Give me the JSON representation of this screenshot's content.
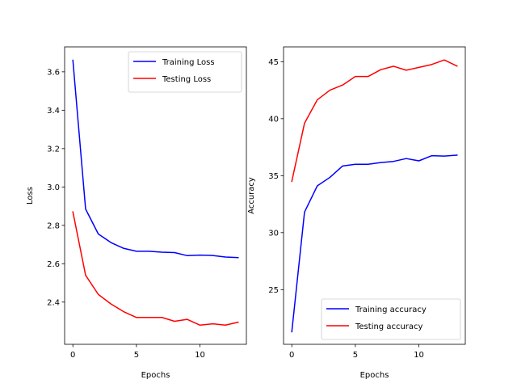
{
  "chart_data": [
    {
      "type": "line",
      "title": "",
      "xlabel": "Epochs",
      "ylabel": "Loss",
      "xlim": [
        -0.65,
        13.65
      ],
      "ylim": [
        2.18,
        3.73
      ],
      "xticks": [
        0,
        5,
        10
      ],
      "xtick_labels": [
        "0",
        "5",
        "10"
      ],
      "yticks": [
        2.4,
        2.6,
        2.8,
        3.0,
        3.2,
        3.4,
        3.6
      ],
      "ytick_labels": [
        "2.4",
        "2.6",
        "2.8",
        "3.0",
        "3.2",
        "3.4",
        "3.6"
      ],
      "grid": false,
      "legend_position": "top-right",
      "x": [
        0,
        1,
        2,
        3,
        4,
        5,
        6,
        7,
        8,
        9,
        10,
        11,
        12,
        13
      ],
      "series": [
        {
          "name": "Training Loss",
          "color": "#0000ff",
          "values": [
            3.66,
            2.885,
            2.755,
            2.71,
            2.68,
            2.665,
            2.665,
            2.66,
            2.658,
            2.642,
            2.645,
            2.643,
            2.635,
            2.632
          ]
        },
        {
          "name": "Testing Loss",
          "color": "#ff0000",
          "values": [
            2.87,
            2.54,
            2.44,
            2.39,
            2.35,
            2.32,
            2.32,
            2.32,
            2.3,
            2.31,
            2.28,
            2.287,
            2.28,
            2.295
          ]
        }
      ]
    },
    {
      "type": "line",
      "title": "",
      "xlabel": "Epochs",
      "ylabel": "Accuracy",
      "xlim": [
        -0.65,
        13.65
      ],
      "ylim": [
        20.2,
        46.3
      ],
      "xticks": [
        0,
        5,
        10
      ],
      "xtick_labels": [
        "0",
        "5",
        "10"
      ],
      "yticks": [
        25,
        30,
        35,
        40,
        45
      ],
      "ytick_labels": [
        "25",
        "30",
        "35",
        "40",
        "45"
      ],
      "grid": false,
      "legend_position": "bottom-right",
      "x": [
        0,
        1,
        2,
        3,
        4,
        5,
        6,
        7,
        8,
        9,
        10,
        11,
        12,
        13
      ],
      "series": [
        {
          "name": "Training accuracy",
          "color": "#0000ff",
          "values": [
            21.3,
            31.8,
            34.1,
            34.85,
            35.85,
            36.0,
            36.0,
            36.15,
            36.25,
            36.5,
            36.3,
            36.75,
            36.72,
            36.8
          ]
        },
        {
          "name": "Testing accuracy",
          "color": "#ff0000",
          "values": [
            34.5,
            39.6,
            41.65,
            42.5,
            42.95,
            43.7,
            43.7,
            44.3,
            44.6,
            44.25,
            44.5,
            44.75,
            45.15,
            44.62
          ]
        }
      ]
    }
  ]
}
